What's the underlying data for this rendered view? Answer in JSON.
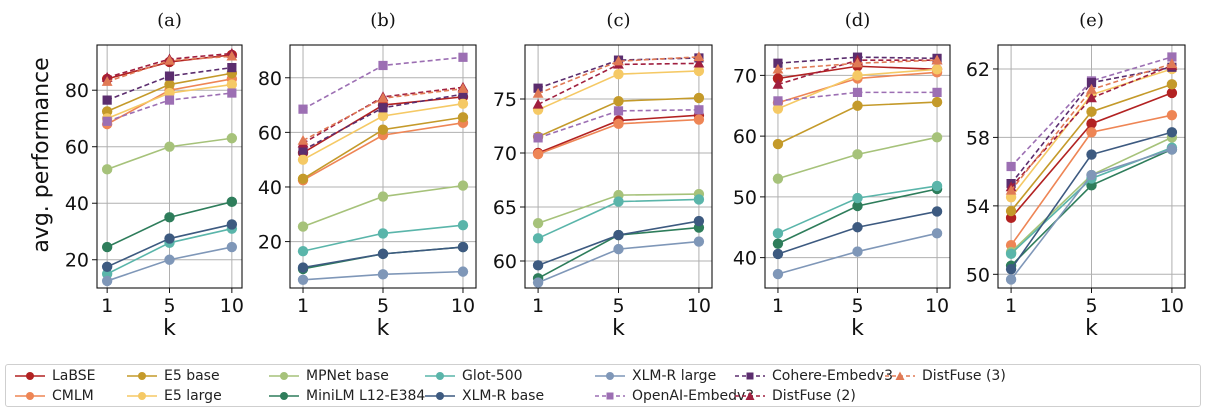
{
  "figure": {
    "ylabel": "avg. performance",
    "xlabel": "k"
  },
  "chart_data": [
    {
      "type": "line",
      "title": "(a)",
      "xlabel": "k",
      "ylabel": "avg. performance",
      "x": [
        1,
        5,
        10
      ],
      "x_ticks": [
        "1",
        "5",
        "10"
      ],
      "ylim": [
        10,
        96
      ],
      "yticks": [
        20,
        40,
        60,
        80
      ],
      "grid": true,
      "series": [
        {
          "name": "LaBSE",
          "values": [
            84,
            90,
            92.5
          ]
        },
        {
          "name": "CMLM",
          "values": [
            68,
            80,
            84
          ]
        },
        {
          "name": "E5 base",
          "values": [
            72.5,
            82,
            86
          ]
        },
        {
          "name": "E5 large",
          "values": [
            70,
            79,
            82
          ]
        },
        {
          "name": "MPNet base",
          "values": [
            52,
            60,
            63
          ]
        },
        {
          "name": "MiniLM L12-E384",
          "values": [
            24.5,
            35,
            40.5
          ]
        },
        {
          "name": "Glot-500",
          "values": [
            15,
            26,
            31
          ]
        },
        {
          "name": "XLM-R base",
          "values": [
            17.5,
            27.5,
            32.5
          ]
        },
        {
          "name": "XLM-R large",
          "values": [
            12.5,
            20,
            24.5
          ]
        },
        {
          "name": "OpenAI-Embedv3",
          "values": [
            69,
            76.5,
            79
          ]
        },
        {
          "name": "Cohere-Embedv3",
          "values": [
            76.5,
            85,
            88
          ]
        },
        {
          "name": "DistFuse (2)",
          "values": [
            84.5,
            91,
            93
          ]
        },
        {
          "name": "DistFuse (3)",
          "values": [
            83,
            90.5,
            92
          ]
        }
      ]
    },
    {
      "type": "line",
      "title": "(b)",
      "xlabel": "k",
      "x": [
        1,
        5,
        10
      ],
      "x_ticks": [
        "1",
        "5",
        "10"
      ],
      "ylim": [
        3,
        92
      ],
      "yticks": [
        20,
        40,
        60,
        80
      ],
      "grid": true,
      "series": [
        {
          "name": "LaBSE",
          "values": [
            52.5,
            70,
            73
          ]
        },
        {
          "name": "CMLM",
          "values": [
            42.5,
            59,
            63.5
          ]
        },
        {
          "name": "E5 base",
          "values": [
            43,
            61,
            65.5
          ]
        },
        {
          "name": "E5 large",
          "values": [
            50,
            66,
            70.5
          ]
        },
        {
          "name": "MPNet base",
          "values": [
            25.5,
            36.5,
            40.5
          ]
        },
        {
          "name": "MiniLM L12-E384",
          "values": [
            10,
            15.5,
            18
          ]
        },
        {
          "name": "Glot-500",
          "values": [
            16.5,
            23,
            26
          ]
        },
        {
          "name": "XLM-R base",
          "values": [
            10.5,
            15.5,
            18
          ]
        },
        {
          "name": "XLM-R large",
          "values": [
            6,
            8,
            9
          ]
        },
        {
          "name": "OpenAI-Embedv3",
          "values": [
            68.5,
            84.5,
            87.5
          ]
        },
        {
          "name": "Cohere-Embedv3",
          "values": [
            53.5,
            69,
            74
          ]
        },
        {
          "name": "DistFuse (2)",
          "values": [
            56,
            73,
            76.5
          ]
        },
        {
          "name": "DistFuse (3)",
          "values": [
            57,
            72.5,
            76
          ]
        }
      ]
    },
    {
      "type": "line",
      "title": "(c)",
      "xlabel": "k",
      "x": [
        1,
        5,
        10
      ],
      "x_ticks": [
        "1",
        "5",
        "10"
      ],
      "ylim": [
        57.5,
        80
      ],
      "yticks": [
        60,
        65,
        70,
        75
      ],
      "grid": true,
      "series": [
        {
          "name": "LaBSE",
          "values": [
            70,
            73,
            73.5
          ]
        },
        {
          "name": "CMLM",
          "values": [
            69.9,
            72.7,
            73.1
          ]
        },
        {
          "name": "E5 base",
          "values": [
            71.5,
            74.8,
            75.1
          ]
        },
        {
          "name": "E5 large",
          "values": [
            74,
            77.3,
            77.6
          ]
        },
        {
          "name": "MPNet base",
          "values": [
            63.5,
            66.1,
            66.2
          ]
        },
        {
          "name": "MiniLM L12-E384",
          "values": [
            58.4,
            62.4,
            63.1
          ]
        },
        {
          "name": "Glot-500",
          "values": [
            62.1,
            65.5,
            65.7
          ]
        },
        {
          "name": "XLM-R base",
          "values": [
            59.6,
            62.4,
            63.7
          ]
        },
        {
          "name": "XLM-R large",
          "values": [
            58,
            61.1,
            61.8
          ]
        },
        {
          "name": "OpenAI-Embedv3",
          "values": [
            71.4,
            73.9,
            74
          ]
        },
        {
          "name": "Cohere-Embedv3",
          "values": [
            76,
            78.6,
            78.8
          ]
        },
        {
          "name": "DistFuse (2)",
          "values": [
            74.5,
            78.2,
            78.3
          ]
        },
        {
          "name": "DistFuse (3)",
          "values": [
            75.5,
            78.5,
            78.9
          ]
        }
      ]
    },
    {
      "type": "line",
      "title": "(d)",
      "xlabel": "k",
      "x": [
        1,
        5,
        10
      ],
      "x_ticks": [
        "1",
        "5",
        "10"
      ],
      "ylim": [
        35,
        75
      ],
      "yticks": [
        40,
        50,
        60,
        70
      ],
      "grid": true,
      "series": [
        {
          "name": "LaBSE",
          "values": [
            69.5,
            71.5,
            71
          ]
        },
        {
          "name": "CMLM",
          "values": [
            65.5,
            69.5,
            70.5
          ]
        },
        {
          "name": "E5 base",
          "values": [
            58.7,
            65,
            65.6
          ]
        },
        {
          "name": "E5 large",
          "values": [
            64.5,
            70,
            71
          ]
        },
        {
          "name": "MPNet base",
          "values": [
            53,
            57,
            59.8
          ]
        },
        {
          "name": "MiniLM L12-E384",
          "values": [
            42.3,
            48.5,
            51.3
          ]
        },
        {
          "name": "Glot-500",
          "values": [
            44,
            49.8,
            51.8
          ]
        },
        {
          "name": "XLM-R base",
          "values": [
            40.6,
            45,
            47.6
          ]
        },
        {
          "name": "XLM-R large",
          "values": [
            37.3,
            41,
            44
          ]
        },
        {
          "name": "OpenAI-Embedv3",
          "values": [
            65.8,
            67.2,
            67.2
          ]
        },
        {
          "name": "Cohere-Embedv3",
          "values": [
            72,
            73,
            72.8
          ]
        },
        {
          "name": "DistFuse (2)",
          "values": [
            68.5,
            72.5,
            72.5
          ]
        },
        {
          "name": "DistFuse (3)",
          "values": [
            71,
            72,
            72.5
          ]
        }
      ]
    },
    {
      "type": "line",
      "title": "(e)",
      "xlabel": "k",
      "x": [
        1,
        5,
        10
      ],
      "x_ticks": [
        "1",
        "5",
        "10"
      ],
      "ylim": [
        49.2,
        63.4
      ],
      "yticks": [
        50,
        54,
        58,
        62
      ],
      "grid": true,
      "series": [
        {
          "name": "LaBSE",
          "values": [
            53.3,
            58.8,
            60.6
          ]
        },
        {
          "name": "CMLM",
          "values": [
            51.7,
            58.3,
            59.3
          ]
        },
        {
          "name": "E5 base",
          "values": [
            53.7,
            59.5,
            61.1
          ]
        },
        {
          "name": "E5 large",
          "values": [
            54.5,
            60.5,
            62
          ]
        },
        {
          "name": "MPNet base",
          "values": [
            51.3,
            55.8,
            58
          ]
        },
        {
          "name": "MiniLM L12-E384",
          "values": [
            50.5,
            55.2,
            57.3
          ]
        },
        {
          "name": "Glot-500",
          "values": [
            51.2,
            55.6,
            57.4
          ]
        },
        {
          "name": "XLM-R base",
          "values": [
            50.3,
            57,
            58.3
          ]
        },
        {
          "name": "XLM-R large",
          "values": [
            49.7,
            55.8,
            57.3
          ]
        },
        {
          "name": "OpenAI-Embedv3",
          "values": [
            56.3,
            61.3,
            62.7
          ]
        },
        {
          "name": "Cohere-Embedv3",
          "values": [
            55.3,
            61.2,
            62.1
          ]
        },
        {
          "name": "DistFuse (2)",
          "values": [
            55.1,
            60.3,
            62.2
          ]
        },
        {
          "name": "DistFuse (3)",
          "values": [
            54.9,
            60.8,
            62.3
          ]
        }
      ]
    }
  ],
  "legend": [
    {
      "name": "LaBSE",
      "color": "#b22222",
      "marker": "circle",
      "dash": false
    },
    {
      "name": "CMLM",
      "color": "#ee8555",
      "marker": "circle",
      "dash": false
    },
    {
      "name": "E5 base",
      "color": "#c49a2a",
      "marker": "circle",
      "dash": false
    },
    {
      "name": "E5 large",
      "color": "#f5c965",
      "marker": "circle",
      "dash": false
    },
    {
      "name": "MPNet base",
      "color": "#a6c27a",
      "marker": "circle",
      "dash": false
    },
    {
      "name": "MiniLM L12-E384",
      "color": "#2e7d5b",
      "marker": "circle",
      "dash": false
    },
    {
      "name": "Glot-500",
      "color": "#5ab5aa",
      "marker": "circle",
      "dash": false
    },
    {
      "name": "XLM-R base",
      "color": "#3d5a80",
      "marker": "circle",
      "dash": false
    },
    {
      "name": "XLM-R large",
      "color": "#7f97b8",
      "marker": "circle",
      "dash": false
    },
    {
      "name": "OpenAI-Embedv3",
      "color": "#9c6fb3",
      "marker": "square",
      "dash": true
    },
    {
      "name": "Cohere-Embedv3",
      "color": "#5b2d6e",
      "marker": "square",
      "dash": true
    },
    {
      "name": "DistFuse (2)",
      "color": "#a01f3f",
      "marker": "triangle",
      "dash": true
    },
    {
      "name": "DistFuse (3)",
      "color": "#e07a55",
      "marker": "triangle",
      "dash": true
    }
  ]
}
